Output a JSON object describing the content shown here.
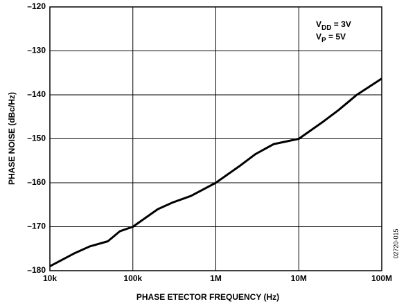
{
  "chart_data": {
    "type": "line",
    "xlabel": "PHASE ETECTOR FREQUENCY (Hz)",
    "ylabel": "PHASE NOISE (dBc/Hz)",
    "annotations": [
      {
        "text": "V",
        "sub": "DD",
        "rest": " = 3V"
      },
      {
        "text": "V",
        "sub": "P",
        "rest": " = 5V"
      }
    ],
    "side_label": "02720-015",
    "x": [
      10000,
      20000,
      30000,
      50000,
      70000,
      100000,
      200000,
      300000,
      500000,
      1000000,
      2000000,
      3000000,
      5000000,
      10000000,
      20000000,
      30000000,
      50000000,
      100000000
    ],
    "values": [
      -179,
      -176,
      -174.5,
      -173.3,
      -171,
      -170,
      -166,
      -164.5,
      -163,
      -160,
      -156,
      -153.5,
      -151.2,
      -150,
      -146,
      -143.5,
      -140,
      -136.3
    ],
    "color": "#000000",
    "xscale": "log",
    "xlim": [
      10000,
      100000000
    ],
    "xticks": [
      {
        "value": 10000,
        "label": "10k"
      },
      {
        "value": 100000,
        "label": "100k"
      },
      {
        "value": 1000000,
        "label": "1M"
      },
      {
        "value": 10000000,
        "label": "10M"
      },
      {
        "value": 100000000,
        "label": "100M"
      }
    ],
    "ylim": [
      -180,
      -120
    ],
    "yticks": [
      {
        "value": -180,
        "label": "–180"
      },
      {
        "value": -170,
        "label": "–170"
      },
      {
        "value": -160,
        "label": "–160"
      },
      {
        "value": -150,
        "label": "–150"
      },
      {
        "value": -140,
        "label": "–140"
      },
      {
        "value": -130,
        "label": "–130"
      },
      {
        "value": -120,
        "label": "–120"
      }
    ],
    "grid": true
  }
}
